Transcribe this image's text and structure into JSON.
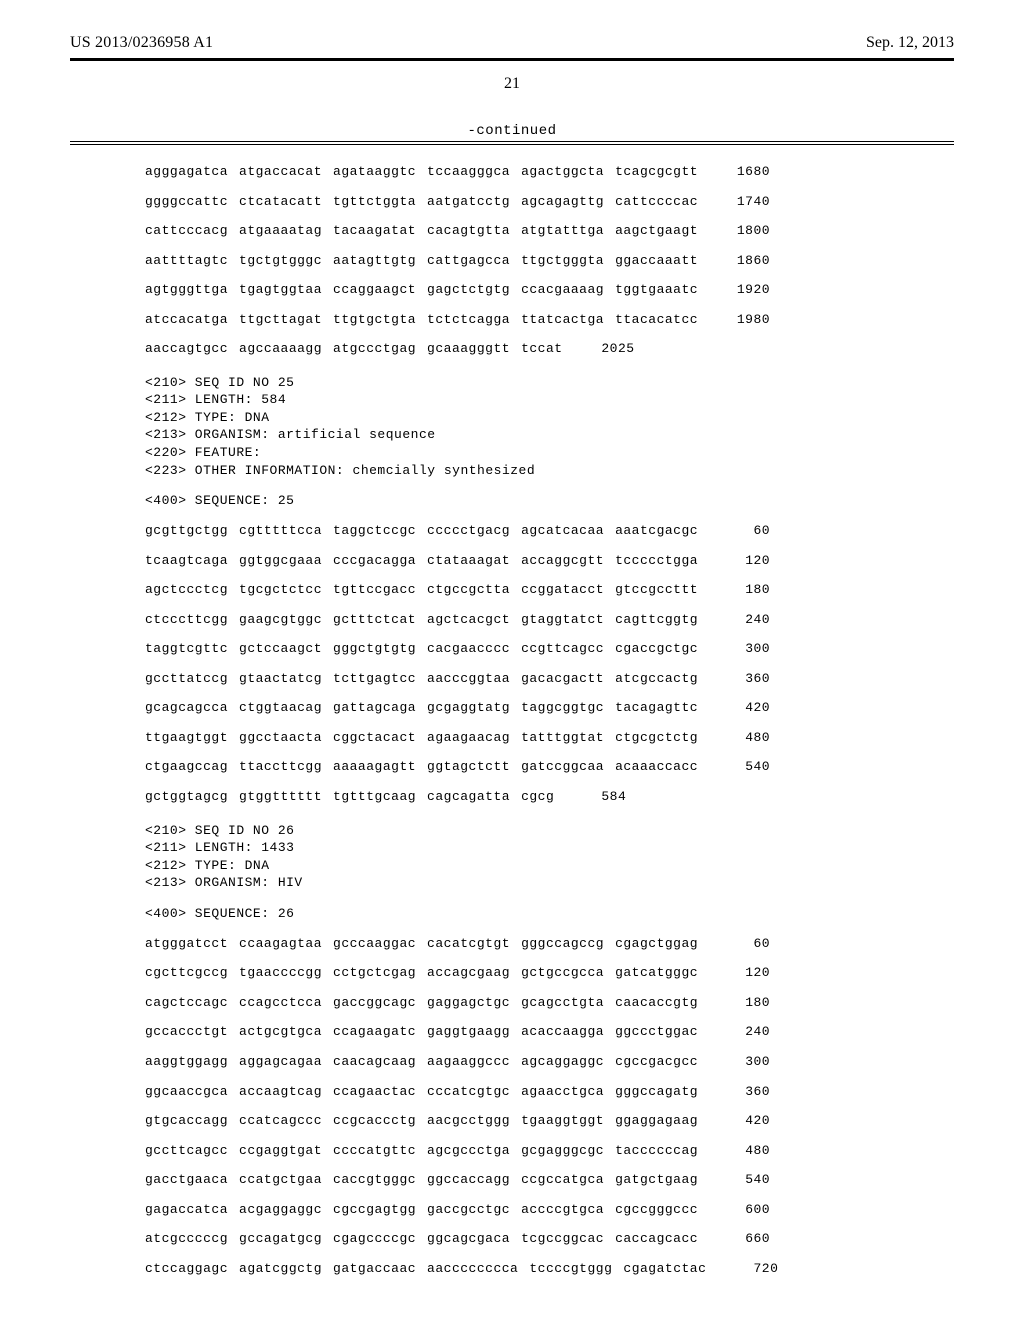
{
  "header": {
    "publication_number": "US 2013/0236958 A1",
    "publication_date": "Sep. 12, 2013"
  },
  "page_number": "21",
  "continued_label": "-continued",
  "blocks": [
    {
      "type": "sequence_lines",
      "lines": [
        {
          "groups": [
            "agggagatca",
            "atgaccacat",
            "agataaggtc",
            "tccaagggca",
            "agactggcta",
            "tcagcgcgtt"
          ],
          "num": "1680"
        },
        {
          "groups": [
            "ggggccattc",
            "ctcatacatt",
            "tgttctggta",
            "aatgatcctg",
            "agcagagttg",
            "cattccccac"
          ],
          "num": "1740"
        },
        {
          "groups": [
            "cattcccacg",
            "atgaaaatag",
            "tacaagatat",
            "cacagtgtta",
            "atgtatttga",
            "aagctgaagt"
          ],
          "num": "1800"
        },
        {
          "groups": [
            "aattttagtc",
            "tgctgtgggc",
            "aatagttgtg",
            "cattgagcca",
            "ttgctgggta",
            "ggaccaaatt"
          ],
          "num": "1860"
        },
        {
          "groups": [
            "agtgggttga",
            "tgagtggtaa",
            "ccaggaagct",
            "gagctctgtg",
            "ccacgaaaag",
            "tggtgaaatc"
          ],
          "num": "1920"
        },
        {
          "groups": [
            "atccacatga",
            "ttgcttagat",
            "ttgtgctgta",
            "tctctcagga",
            "ttatcactga",
            "ttacacatcc"
          ],
          "num": "1980"
        },
        {
          "groups": [
            "aaccagtgcc",
            "agccaaaagg",
            "atgccctgag",
            "gcaaagggtt",
            "tccat"
          ],
          "num": "2025"
        }
      ]
    },
    {
      "type": "meta",
      "lines": [
        "<210> SEQ ID NO 25",
        "<211> LENGTH: 584",
        "<212> TYPE: DNA",
        "<213> ORGANISM: artificial sequence",
        "<220> FEATURE:",
        "<223> OTHER INFORMATION: chemcially synthesized"
      ]
    },
    {
      "type": "seq_label",
      "text": "<400> SEQUENCE: 25"
    },
    {
      "type": "sequence_lines",
      "lines": [
        {
          "groups": [
            "gcgttgctgg",
            "cgtttttcca",
            "taggctccgc",
            "ccccctgacg",
            "agcatcacaa",
            "aaatcgacgc"
          ],
          "num": "60"
        },
        {
          "groups": [
            "tcaagtcaga",
            "ggtggcgaaa",
            "cccgacagga",
            "ctataaagat",
            "accaggcgtt",
            "tccccctgga"
          ],
          "num": "120"
        },
        {
          "groups": [
            "agctccctcg",
            "tgcgctctcc",
            "tgttccgacc",
            "ctgccgctta",
            "ccggatacct",
            "gtccgccttt"
          ],
          "num": "180"
        },
        {
          "groups": [
            "ctcccttcgg",
            "gaagcgtggc",
            "gctttctcat",
            "agctcacgct",
            "gtaggtatct",
            "cagttcggtg"
          ],
          "num": "240"
        },
        {
          "groups": [
            "taggtcgttc",
            "gctccaagct",
            "gggctgtgtg",
            "cacgaacccc",
            "ccgttcagcc",
            "cgaccgctgc"
          ],
          "num": "300"
        },
        {
          "groups": [
            "gccttatccg",
            "gtaactatcg",
            "tcttgagtcc",
            "aacccggtaa",
            "gacacgactt",
            "atcgccactg"
          ],
          "num": "360"
        },
        {
          "groups": [
            "gcagcagcca",
            "ctggtaacag",
            "gattagcaga",
            "gcgaggtatg",
            "taggcggtgc",
            "tacagagttc"
          ],
          "num": "420"
        },
        {
          "groups": [
            "ttgaagtggt",
            "ggcctaacta",
            "cggctacact",
            "agaagaacag",
            "tatttggtat",
            "ctgcgctctg"
          ],
          "num": "480"
        },
        {
          "groups": [
            "ctgaagccag",
            "ttaccttcgg",
            "aaaaagagtt",
            "ggtagctctt",
            "gatccggcaa",
            "acaaaccacc"
          ],
          "num": "540"
        },
        {
          "groups": [
            "gctggtagcg",
            "gtggtttttt",
            "tgtttgcaag",
            "cagcagatta",
            "cgcg"
          ],
          "num": "584"
        }
      ]
    },
    {
      "type": "meta",
      "lines": [
        "<210> SEQ ID NO 26",
        "<211> LENGTH: 1433",
        "<212> TYPE: DNA",
        "<213> ORGANISM: HIV"
      ]
    },
    {
      "type": "seq_label",
      "text": "<400> SEQUENCE: 26"
    },
    {
      "type": "sequence_lines",
      "lines": [
        {
          "groups": [
            "atgggatcct",
            "ccaagagtaa",
            "gcccaaggac",
            "cacatcgtgt",
            "gggccagccg",
            "cgagctggag"
          ],
          "num": "60"
        },
        {
          "groups": [
            "cgcttcgccg",
            "tgaaccccgg",
            "cctgctcgag",
            "accagcgaag",
            "gctgccgcca",
            "gatcatgggc"
          ],
          "num": "120"
        },
        {
          "groups": [
            "cagctccagc",
            "ccagcctcca",
            "gaccggcagc",
            "gaggagctgc",
            "gcagcctgta",
            "caacaccgtg"
          ],
          "num": "180"
        },
        {
          "groups": [
            "gccaccctgt",
            "actgcgtgca",
            "ccagaagatc",
            "gaggtgaagg",
            "acaccaagga",
            "ggccctggac"
          ],
          "num": "240"
        },
        {
          "groups": [
            "aaggtggagg",
            "aggagcagaa",
            "caacagcaag",
            "aagaaggccc",
            "agcaggaggc",
            "cgccgacgcc"
          ],
          "num": "300"
        },
        {
          "groups": [
            "ggcaaccgca",
            "accaagtcag",
            "ccagaactac",
            "cccatcgtgc",
            "agaacctgca",
            "gggccagatg"
          ],
          "num": "360"
        },
        {
          "groups": [
            "gtgcaccagg",
            "ccatcagccc",
            "ccgcaccctg",
            "aacgcctggg",
            "tgaaggtggt",
            "ggaggagaag"
          ],
          "num": "420"
        },
        {
          "groups": [
            "gccttcagcc",
            "ccgaggtgat",
            "ccccatgttc",
            "agcgccctga",
            "gcgagggcgc",
            "taccccccag"
          ],
          "num": "480"
        },
        {
          "groups": [
            "gacctgaaca",
            "ccatgctgaa",
            "caccgtgggc",
            "ggccaccagg",
            "ccgccatgca",
            "gatgctgaag"
          ],
          "num": "540"
        },
        {
          "groups": [
            "gagaccatca",
            "acgaggaggc",
            "cgccgagtgg",
            "gaccgcctgc",
            "accccgtgca",
            "cgccgggccc"
          ],
          "num": "600"
        },
        {
          "groups": [
            "atcgcccccg",
            "gccagatgcg",
            "cgagccccgc",
            "ggcagcgaca",
            "tcgccggcac",
            "caccagcacc"
          ],
          "num": "660"
        },
        {
          "groups": [
            "ctccaggagc",
            "agatcggctg",
            "gatgaccaac",
            "aacccccccca",
            "tccccgtggg",
            "cgagatctac"
          ],
          "num": "720"
        }
      ]
    }
  ]
}
